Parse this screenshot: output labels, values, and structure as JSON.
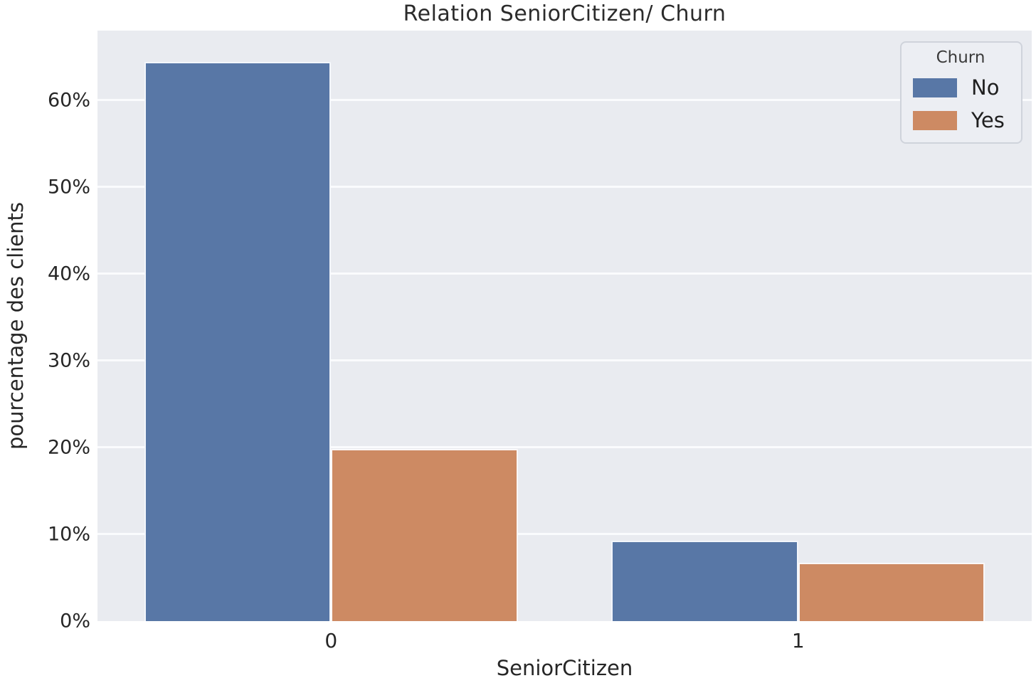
{
  "chart_data": {
    "type": "bar",
    "title": "Relation SeniorCitizen/ Churn",
    "xlabel": "SeniorCitizen",
    "ylabel": "pourcentage des clients",
    "categories": [
      "0",
      "1"
    ],
    "series": [
      {
        "name": "No",
        "color": "#5877a6",
        "values": [
          64.4,
          9.3
        ]
      },
      {
        "name": "Yes",
        "color": "#cd8a63",
        "values": [
          19.8,
          6.7
        ]
      }
    ],
    "ylim": [
      0,
      68
    ],
    "yticks": [
      {
        "value": 0,
        "label": "0%"
      },
      {
        "value": 10,
        "label": "10%"
      },
      {
        "value": 20,
        "label": "20%"
      },
      {
        "value": 30,
        "label": "30%"
      },
      {
        "value": 40,
        "label": "40%"
      },
      {
        "value": 50,
        "label": "50%"
      },
      {
        "value": 60,
        "label": "60%"
      }
    ],
    "grid": "horizontal-only",
    "grid_color": "#fafbfd",
    "plot_bg": "#e9ebf0",
    "legend": {
      "title": "Churn",
      "position": "upper-right"
    },
    "bar_group_total_width_fraction": 0.8
  }
}
